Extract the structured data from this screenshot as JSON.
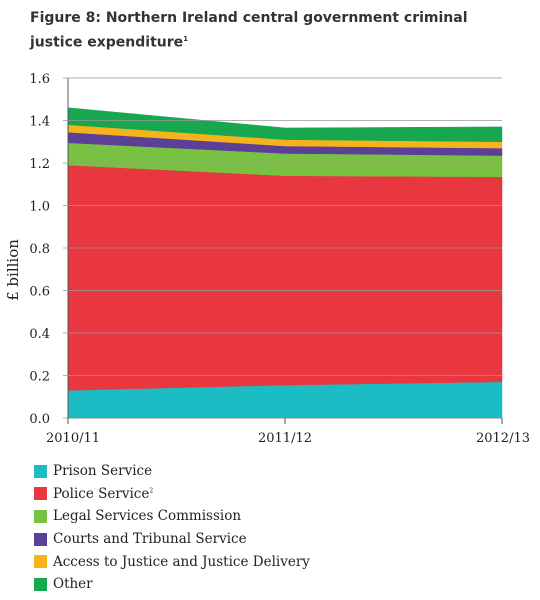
{
  "chart_data": {
    "type": "area",
    "title": "Figure 8: Northern Ireland central government criminal justice expenditure",
    "title_note": "1",
    "ylabel": "£ billion",
    "xlabel": "",
    "x": [
      "2010/11",
      "2011/12",
      "2012/13"
    ],
    "ylim": [
      0,
      1.6
    ],
    "yticks": [
      "0.0",
      "0.2",
      "0.4",
      "0.6",
      "0.8",
      "1.0",
      "1.2",
      "1.4",
      "1.6"
    ],
    "stacked": true,
    "grid": false,
    "legend_position": "bottom",
    "series": [
      {
        "name": "Prison Service",
        "note": "",
        "color": "#1cbcc4",
        "values": [
          0.13,
          0.155,
          0.17
        ]
      },
      {
        "name": "Police Service",
        "note": "2",
        "color": "#e8373f",
        "values": [
          1.06,
          0.985,
          0.965
        ]
      },
      {
        "name": "Legal Services Commission",
        "note": "",
        "color": "#78c142",
        "values": [
          0.105,
          0.105,
          0.1
        ]
      },
      {
        "name": "Courts and Tribunal Service",
        "note": "",
        "color": "#5c3f96",
        "values": [
          0.05,
          0.035,
          0.035
        ]
      },
      {
        "name": "Access to Justice and Justice Delivery",
        "note": "",
        "color": "#f7b31c",
        "values": [
          0.035,
          0.03,
          0.03
        ]
      },
      {
        "name": "Other",
        "note": "",
        "color": "#17a84f",
        "values": [
          0.08,
          0.055,
          0.07
        ]
      }
    ]
  }
}
